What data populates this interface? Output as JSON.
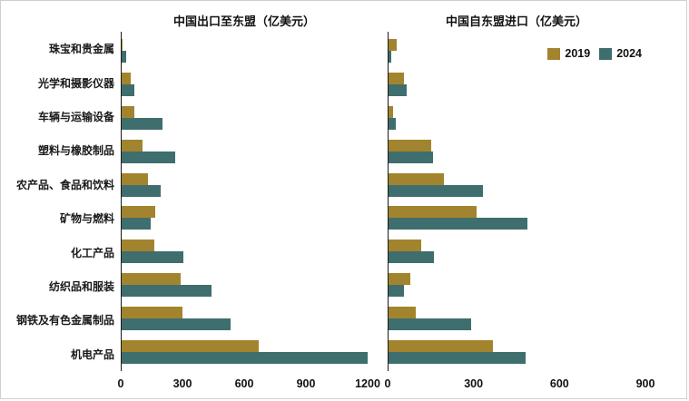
{
  "figure": {
    "border_color": "#cfcfcf",
    "background": "#ffffff"
  },
  "colors": {
    "series_2019": "#a3842e",
    "series_2024": "#3f6e6e",
    "axis": "#1a1a1a"
  },
  "legend": {
    "items": [
      {
        "label": "2019",
        "color": "#a3842e"
      },
      {
        "label": "2024",
        "color": "#3f6e6e"
      }
    ]
  },
  "categories": [
    "珠宝和贵金属",
    "光学和摄影仪器",
    "车辆与运输设备",
    "塑料与橡胶制品",
    "农产品、食品和饮料",
    "矿物与燃料",
    "化工产品",
    "纺织品和服装",
    "钢铁及有色金属制品",
    "机电产品"
  ],
  "chart_data": [
    {
      "type": "bar",
      "orientation": "horizontal",
      "title": "中国出口至东盟（亿美元）",
      "unit": "亿美元",
      "categories": [
        "珠宝和贵金属",
        "光学和摄影仪器",
        "车辆与运输设备",
        "塑料与橡胶制品",
        "农产品、食品和饮料",
        "矿物与燃料",
        "化工产品",
        "纺织品和服装",
        "钢铁及有色金属制品",
        "机电产品"
      ],
      "series": [
        {
          "name": "2019",
          "color": "#a3842e",
          "values": [
            5,
            45,
            60,
            100,
            130,
            165,
            160,
            290,
            295,
            670
          ]
        },
        {
          "name": "2024",
          "color": "#3f6e6e",
          "values": [
            20,
            60,
            200,
            260,
            190,
            140,
            300,
            440,
            530,
            1200
          ]
        }
      ],
      "xlim": [
        0,
        1200
      ],
      "xticks": [
        0,
        300,
        600,
        900,
        1200
      ],
      "grid": false,
      "legend_position": "none"
    },
    {
      "type": "bar",
      "orientation": "horizontal",
      "title": "中国自东盟进口（亿美元）",
      "unit": "亿美元",
      "categories": [
        "珠宝和贵金属",
        "光学和摄影仪器",
        "车辆与运输设备",
        "塑料与橡胶制品",
        "农产品、食品和饮料",
        "矿物与燃料",
        "化工产品",
        "纺织品和服装",
        "钢铁及有色金属制品",
        "机电产品"
      ],
      "series": [
        {
          "name": "2019",
          "color": "#a3842e",
          "values": [
            30,
            55,
            15,
            150,
            195,
            310,
            115,
            75,
            95,
            365
          ]
        },
        {
          "name": "2024",
          "color": "#3f6e6e",
          "values": [
            10,
            65,
            25,
            155,
            330,
            485,
            160,
            55,
            290,
            480
          ]
        }
      ],
      "xlim": [
        0,
        900
      ],
      "xticks": [
        0,
        300,
        600,
        900
      ],
      "grid": false,
      "legend_position": "top-right"
    }
  ]
}
